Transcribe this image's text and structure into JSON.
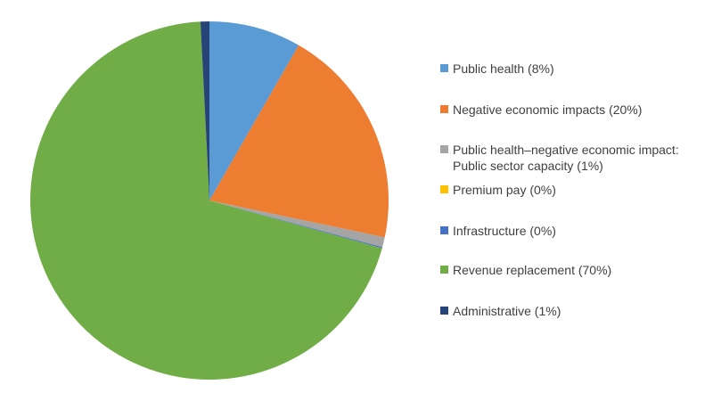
{
  "chart_data": {
    "type": "pie",
    "title": "",
    "start_angle_deg": 0,
    "direction": "clockwise",
    "legend_position": "right",
    "slices": [
      {
        "label": "Public health (8%)",
        "value": 8.3,
        "color": "#5B9BD5"
      },
      {
        "label": "Negative economic impacts (20%)",
        "value": 20.0,
        "color": "#ED7D31"
      },
      {
        "label": "Public health–negative economic impact: Public sector capacity (1%)",
        "value": 0.9,
        "color": "#A5A5A5"
      },
      {
        "label": "Premium pay (0%)",
        "value": 0.0,
        "color": "#FFC000"
      },
      {
        "label": "Infrastructure (0%)",
        "value": 0.1,
        "color": "#4472C4"
      },
      {
        "label": "Revenue replacement (70%)",
        "value": 69.9,
        "color": "#70AD47"
      },
      {
        "label": "Administrative (1%)",
        "value": 0.8,
        "color": "#264478"
      }
    ]
  }
}
